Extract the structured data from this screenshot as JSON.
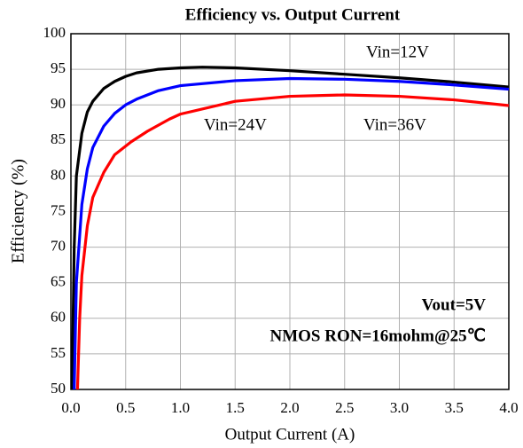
{
  "chart_data": {
    "type": "line",
    "title": "Efficiency vs. Output Current",
    "x_label": "Output Current (A)",
    "y_label": "Efficiency (%)",
    "xlim": [
      0,
      4
    ],
    "ylim": [
      50,
      100
    ],
    "xticks": [
      {
        "value": 0,
        "label": "0.0"
      },
      0.5,
      {
        "value": 1,
        "label": "1.0"
      },
      1.5,
      {
        "value": 2,
        "label": "2.0"
      },
      2.5,
      {
        "value": 3,
        "label": "3.0"
      },
      3.5,
      {
        "value": 4,
        "label": "4.0"
      }
    ],
    "yticks": [
      50,
      55,
      60,
      65,
      70,
      75,
      80,
      85,
      90,
      95,
      100
    ],
    "grid": true,
    "series": [
      {
        "name": "Vin=12V",
        "color": "#000000",
        "x": [
          0.01,
          0.03,
          0.05,
          0.1,
          0.15,
          0.2,
          0.3,
          0.4,
          0.5,
          0.6,
          0.8,
          1.0,
          1.2,
          1.5,
          2.0,
          2.5,
          3.0,
          3.5,
          4.0
        ],
        "values": [
          50,
          70,
          80,
          86,
          89,
          90.5,
          92.3,
          93.3,
          94,
          94.5,
          95,
          95.2,
          95.3,
          95.2,
          94.8,
          94.3,
          93.8,
          93.2,
          92.5
        ]
      },
      {
        "name": "Vin=24V",
        "color": "#0000ff",
        "x": [
          0.03,
          0.05,
          0.1,
          0.15,
          0.2,
          0.3,
          0.4,
          0.5,
          0.6,
          0.8,
          1.0,
          1.5,
          2.0,
          2.5,
          3.0,
          3.5,
          4.0
        ],
        "values": [
          50,
          65,
          76,
          81,
          84,
          87,
          88.8,
          90,
          90.8,
          92,
          92.7,
          93.4,
          93.7,
          93.6,
          93.3,
          92.8,
          92.2
        ]
      },
      {
        "name": "Vin=36V",
        "color": "#ff0000",
        "x": [
          0.06,
          0.08,
          0.1,
          0.15,
          0.2,
          0.3,
          0.4,
          0.55,
          0.7,
          0.9,
          1.0,
          1.5,
          2.0,
          2.5,
          3.0,
          3.5,
          4.0
        ],
        "values": [
          50,
          60,
          66,
          73,
          77,
          80.5,
          83,
          84.8,
          86.3,
          88,
          88.7,
          90.5,
          91.2,
          91.4,
          91.2,
          90.7,
          89.9
        ]
      }
    ],
    "annotations": [
      "Vout=5V",
      "NMOS RON=16mohm@25℃"
    ]
  }
}
